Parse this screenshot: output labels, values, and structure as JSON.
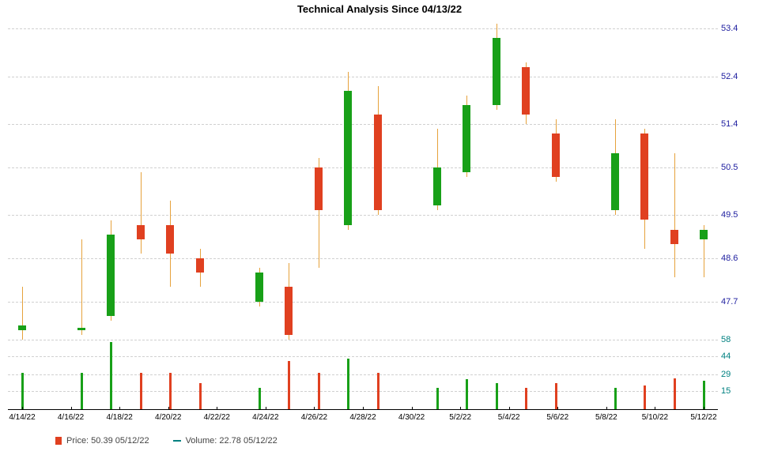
{
  "title": "Technical Analysis Since 04/13/22",
  "price_chart": {
    "type": "candlestick",
    "ylim": [
      46.9,
      53.6
    ],
    "yticks": [
      47.7,
      48.6,
      49.5,
      50.5,
      51.4,
      52.4,
      53.4
    ],
    "grid_color": "#d0d0d0",
    "tick_color": "#2020a0",
    "up_color": "#18a018",
    "down_color": "#e04020",
    "wick_color": "#e6a23c",
    "title_fontsize": 13,
    "tick_fontsize": 11
  },
  "volume_chart": {
    "type": "bar",
    "ylim": [
      0,
      58
    ],
    "yticks": [
      15,
      29,
      44,
      58
    ],
    "tick_color": "#008080",
    "up_color": "#18a018",
    "down_color": "#e04020"
  },
  "x_axis": {
    "labels": [
      "4/14/22",
      "4/16/22",
      "4/18/22",
      "4/20/22",
      "4/22/22",
      "4/24/22",
      "4/26/22",
      "4/28/22",
      "4/30/22",
      "5/2/22",
      "5/4/22",
      "5/6/22",
      "5/8/22",
      "5/10/22",
      "5/12/22"
    ],
    "label_fontsize": 10
  },
  "candles": [
    {
      "idx": 0,
      "open": 47.1,
      "close": 47.2,
      "high": 48.0,
      "low": 46.9,
      "vol": 30,
      "dir": "up"
    },
    {
      "idx": 2,
      "open": 47.1,
      "close": 47.15,
      "high": 49.0,
      "low": 47.0,
      "vol": 30,
      "dir": "up"
    },
    {
      "idx": 3,
      "open": 47.4,
      "close": 49.1,
      "high": 49.4,
      "low": 47.3,
      "vol": 56,
      "dir": "up"
    },
    {
      "idx": 4,
      "open": 49.3,
      "close": 49.0,
      "high": 50.4,
      "low": 48.7,
      "vol": 30,
      "dir": "down"
    },
    {
      "idx": 5,
      "open": 49.3,
      "close": 48.7,
      "high": 49.8,
      "low": 48.0,
      "vol": 30,
      "dir": "down"
    },
    {
      "idx": 6,
      "open": 48.6,
      "close": 48.3,
      "high": 48.8,
      "low": 48.0,
      "vol": 22,
      "dir": "down"
    },
    {
      "idx": 8,
      "open": 47.7,
      "close": 48.3,
      "high": 48.4,
      "low": 47.6,
      "vol": 18,
      "dir": "up"
    },
    {
      "idx": 9,
      "open": 48.0,
      "close": 47.0,
      "high": 48.5,
      "low": 46.9,
      "vol": 40,
      "dir": "down"
    },
    {
      "idx": 10,
      "open": 50.5,
      "close": 49.6,
      "high": 50.7,
      "low": 48.4,
      "vol": 30,
      "dir": "down"
    },
    {
      "idx": 11,
      "open": 49.3,
      "close": 52.1,
      "high": 52.5,
      "low": 49.2,
      "vol": 42,
      "dir": "up"
    },
    {
      "idx": 12,
      "open": 51.6,
      "close": 49.6,
      "high": 52.2,
      "low": 49.5,
      "vol": 30,
      "dir": "down"
    },
    {
      "idx": 14,
      "open": 49.7,
      "close": 50.5,
      "high": 51.3,
      "low": 49.6,
      "vol": 18,
      "dir": "up"
    },
    {
      "idx": 15,
      "open": 50.4,
      "close": 51.8,
      "high": 52.0,
      "low": 50.3,
      "vol": 25,
      "dir": "up"
    },
    {
      "idx": 16,
      "open": 51.8,
      "close": 53.2,
      "high": 53.5,
      "low": 51.7,
      "vol": 22,
      "dir": "up"
    },
    {
      "idx": 17,
      "open": 52.6,
      "close": 51.6,
      "high": 52.7,
      "low": 51.4,
      "vol": 18,
      "dir": "down"
    },
    {
      "idx": 18,
      "open": 51.2,
      "close": 50.3,
      "high": 51.5,
      "low": 50.2,
      "vol": 22,
      "dir": "down"
    },
    {
      "idx": 20,
      "open": 49.6,
      "close": 50.8,
      "high": 51.5,
      "low": 49.5,
      "vol": 18,
      "dir": "up"
    },
    {
      "idx": 21,
      "open": 51.2,
      "close": 49.4,
      "high": 51.3,
      "low": 48.8,
      "vol": 20,
      "dir": "down"
    },
    {
      "idx": 22,
      "open": 49.2,
      "close": 48.9,
      "high": 50.8,
      "low": 48.2,
      "vol": 26,
      "dir": "down"
    },
    {
      "idx": 23,
      "open": 49.0,
      "close": 49.2,
      "high": 49.3,
      "low": 48.2,
      "vol": 24,
      "dir": "up"
    }
  ],
  "n_slots": 24,
  "legend": {
    "price": "Price: 50.39  05/12/22",
    "volume": "Volume: 22.78  05/12/22"
  }
}
